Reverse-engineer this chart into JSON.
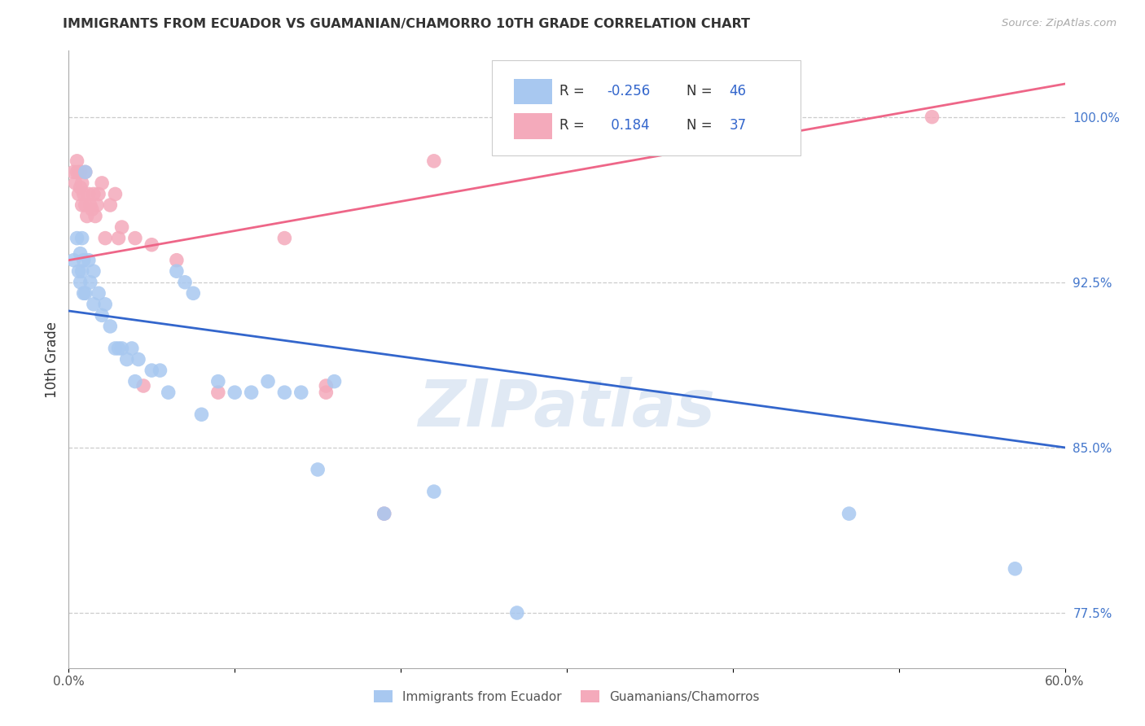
{
  "title": "IMMIGRANTS FROM ECUADOR VS GUAMANIAN/CHAMORRO 10TH GRADE CORRELATION CHART",
  "source": "Source: ZipAtlas.com",
  "ylabel": "10th Grade",
  "x_min": 0.0,
  "x_max": 0.6,
  "y_min": 0.75,
  "y_max": 1.03,
  "x_ticks": [
    0.0,
    0.1,
    0.2,
    0.3,
    0.4,
    0.5,
    0.6
  ],
  "x_tick_labels": [
    "0.0%",
    "",
    "",
    "",
    "",
    "",
    "60.0%"
  ],
  "y_ticks": [
    0.775,
    0.85,
    0.925,
    1.0
  ],
  "y_tick_labels": [
    "77.5%",
    "85.0%",
    "92.5%",
    "100.0%"
  ],
  "blue_color": "#A8C8F0",
  "pink_color": "#F4AABB",
  "blue_line_color": "#3366CC",
  "pink_line_color": "#EE6688",
  "watermark": "ZIPatlas",
  "legend_label_blue_scatter": "Immigrants from Ecuador",
  "legend_label_pink_scatter": "Guamanians/Chamorros",
  "blue_scatter_x": [
    0.003,
    0.005,
    0.006,
    0.007,
    0.007,
    0.008,
    0.008,
    0.009,
    0.009,
    0.01,
    0.01,
    0.012,
    0.013,
    0.015,
    0.015,
    0.018,
    0.02,
    0.022,
    0.025,
    0.028,
    0.03,
    0.032,
    0.035,
    0.038,
    0.04,
    0.042,
    0.05,
    0.055,
    0.06,
    0.065,
    0.07,
    0.075,
    0.08,
    0.09,
    0.1,
    0.11,
    0.12,
    0.13,
    0.14,
    0.15,
    0.16,
    0.19,
    0.22,
    0.27,
    0.47,
    0.57
  ],
  "blue_scatter_y": [
    0.935,
    0.945,
    0.93,
    0.938,
    0.925,
    0.945,
    0.93,
    0.92,
    0.935,
    0.92,
    0.975,
    0.935,
    0.925,
    0.915,
    0.93,
    0.92,
    0.91,
    0.915,
    0.905,
    0.895,
    0.895,
    0.895,
    0.89,
    0.895,
    0.88,
    0.89,
    0.885,
    0.885,
    0.875,
    0.93,
    0.925,
    0.92,
    0.865,
    0.88,
    0.875,
    0.875,
    0.88,
    0.875,
    0.875,
    0.84,
    0.88,
    0.82,
    0.83,
    0.775,
    0.82,
    0.795
  ],
  "pink_scatter_x": [
    0.003,
    0.004,
    0.005,
    0.005,
    0.006,
    0.007,
    0.007,
    0.008,
    0.008,
    0.009,
    0.01,
    0.01,
    0.011,
    0.012,
    0.013,
    0.014,
    0.015,
    0.016,
    0.017,
    0.018,
    0.02,
    0.022,
    0.025,
    0.028,
    0.03,
    0.032,
    0.04,
    0.045,
    0.05,
    0.065,
    0.09,
    0.13,
    0.155,
    0.155,
    0.19,
    0.22,
    0.52
  ],
  "pink_scatter_y": [
    0.975,
    0.97,
    0.975,
    0.98,
    0.965,
    0.968,
    0.975,
    0.96,
    0.97,
    0.965,
    0.96,
    0.975,
    0.955,
    0.965,
    0.96,
    0.958,
    0.965,
    0.955,
    0.96,
    0.965,
    0.97,
    0.945,
    0.96,
    0.965,
    0.945,
    0.95,
    0.945,
    0.878,
    0.942,
    0.935,
    0.875,
    0.945,
    0.875,
    0.878,
    0.82,
    0.98,
    1.0
  ],
  "blue_line_x0": 0.0,
  "blue_line_x1": 0.6,
  "blue_line_y0": 0.912,
  "blue_line_y1": 0.85,
  "pink_line_x0": 0.0,
  "pink_line_x1": 0.6,
  "pink_line_y0": 0.935,
  "pink_line_y1": 1.015
}
